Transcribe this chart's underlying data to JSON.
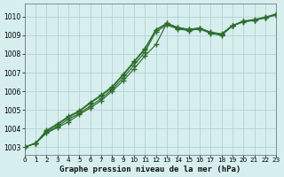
{
  "title": "Graphe pression niveau de la mer (hPa)",
  "bg_color": "#d6eeee",
  "grid_color": "#b0cccc",
  "line_color": "#2d6e2d",
  "xlim": [
    0,
    23
  ],
  "ylim": [
    1002.6,
    1010.7
  ],
  "yticks": [
    1003,
    1004,
    1005,
    1006,
    1007,
    1008,
    1009,
    1010
  ],
  "xticks": [
    0,
    1,
    2,
    3,
    4,
    5,
    6,
    7,
    8,
    9,
    10,
    11,
    12,
    13,
    14,
    15,
    16,
    17,
    18,
    19,
    20,
    21,
    22,
    23
  ],
  "series": [
    [
      1003.0,
      1003.2,
      1003.8,
      1004.1,
      1004.5,
      1004.8,
      1005.2,
      1005.6,
      1006.1,
      1006.7,
      1007.4,
      1008.1,
      1009.2,
      1009.55,
      1009.35,
      1009.25,
      1009.35,
      1009.1,
      1009.0,
      1009.5,
      1009.75,
      1009.8,
      1009.95,
      1010.1
    ],
    [
      1003.0,
      1003.2,
      1003.85,
      1004.2,
      1004.6,
      1004.9,
      1005.35,
      1005.75,
      1006.2,
      1006.85,
      1007.55,
      1008.25,
      1009.3,
      1009.6,
      1009.4,
      1009.3,
      1009.35,
      1009.15,
      1009.05,
      1009.52,
      1009.75,
      1009.82,
      1009.97,
      1010.12
    ],
    [
      1003.0,
      1003.2,
      1003.9,
      1004.25,
      1004.65,
      1004.95,
      1005.4,
      1005.8,
      1006.25,
      1006.9,
      1007.6,
      1008.3,
      1009.3,
      1009.65,
      1009.42,
      1009.32,
      1009.38,
      1009.18,
      1009.08,
      1009.53,
      1009.77,
      1009.85,
      1009.98,
      1010.15
    ],
    [
      1003.0,
      1003.2,
      1003.75,
      1004.05,
      1004.35,
      1004.75,
      1005.1,
      1005.5,
      1006.0,
      1006.55,
      1007.2,
      1007.9,
      1008.5,
      1009.65,
      1009.42,
      1009.32,
      1009.4,
      1009.15,
      1009.05,
      1009.5,
      1009.73,
      1009.8,
      1009.95,
      1010.1
    ]
  ]
}
